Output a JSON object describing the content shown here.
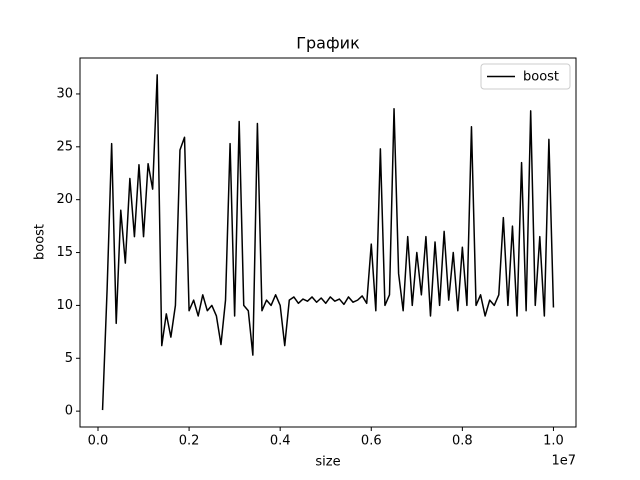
{
  "chart_data": {
    "type": "line",
    "title": "График",
    "x_label": "size",
    "y_label": "boost",
    "x_offset_label": "1e7",
    "x": [
      100000,
      200000,
      300000,
      400000,
      500000,
      600000,
      700000,
      800000,
      900000,
      1000000,
      1100000,
      1200000,
      1300000,
      1400000,
      1500000,
      1600000,
      1700000,
      1800000,
      1900000,
      2000000,
      2100000,
      2200000,
      2300000,
      2400000,
      2500000,
      2600000,
      2700000,
      2800000,
      2900000,
      3000000,
      3100000,
      3200000,
      3300000,
      3400000,
      3500000,
      3600000,
      3700000,
      3800000,
      3900000,
      4000000,
      4100000,
      4200000,
      4300000,
      4400000,
      4500000,
      4600000,
      4700000,
      4800000,
      4900000,
      5000000,
      5100000,
      5200000,
      5300000,
      5400000,
      5500000,
      5600000,
      5700000,
      5800000,
      5900000,
      6000000,
      6100000,
      6200000,
      6300000,
      6400000,
      6500000,
      6600000,
      6700000,
      6800000,
      6900000,
      7000000,
      7100000,
      7200000,
      7300000,
      7400000,
      7500000,
      7600000,
      7700000,
      7800000,
      7900000,
      8000000,
      8100000,
      8200000,
      8300000,
      8400000,
      8500000,
      8600000,
      8700000,
      8800000,
      8900000,
      9000000,
      9100000,
      9200000,
      9300000,
      9400000,
      9500000,
      9600000,
      9700000,
      9800000,
      9900000,
      10000000
    ],
    "series": [
      {
        "name": "boost",
        "color": "#000000",
        "values": [
          0.1,
          11.5,
          25.3,
          8.3,
          19,
          14,
          22,
          16.5,
          23.3,
          16.5,
          23.4,
          21,
          31.8,
          6.2,
          9.2,
          7,
          10,
          24.7,
          25.9,
          9.5,
          10.5,
          9,
          11,
          9.5,
          10,
          9,
          6.3,
          10.5,
          25.3,
          9,
          27.4,
          10,
          9.5,
          5.3,
          27.2,
          9.5,
          10.5,
          10,
          11,
          10,
          6.2,
          10.5,
          10.8,
          10.2,
          10.6,
          10.4,
          10.8,
          10.3,
          10.7,
          10.2,
          10.8,
          10.4,
          10.6,
          10.1,
          10.8,
          10.3,
          10.5,
          10.9,
          10.2,
          15.8,
          9.5,
          24.8,
          10,
          11,
          28.6,
          13,
          9.5,
          16.5,
          10,
          15,
          11,
          16.5,
          9,
          16,
          10,
          17,
          10.5,
          15,
          9.5,
          15.5,
          10,
          26.9,
          10,
          11,
          9,
          10.5,
          10,
          11,
          18.3,
          10,
          17.5,
          9,
          23.5,
          9.5,
          28.4,
          10,
          16.5,
          9,
          25.7,
          9.8
        ]
      }
    ],
    "xlim": [
      -395000,
      10495000
    ],
    "ylim": [
      -1.5,
      33.4
    ],
    "xticks": [
      {
        "value": 0,
        "label": "0.0"
      },
      {
        "value": 2000000,
        "label": "0.2"
      },
      {
        "value": 4000000,
        "label": "0.4"
      },
      {
        "value": 6000000,
        "label": "0.6"
      },
      {
        "value": 8000000,
        "label": "0.8"
      },
      {
        "value": 10000000,
        "label": "1.0"
      }
    ],
    "yticks": [
      0,
      5,
      10,
      15,
      20,
      25,
      30
    ],
    "legend_position": "upper right"
  }
}
